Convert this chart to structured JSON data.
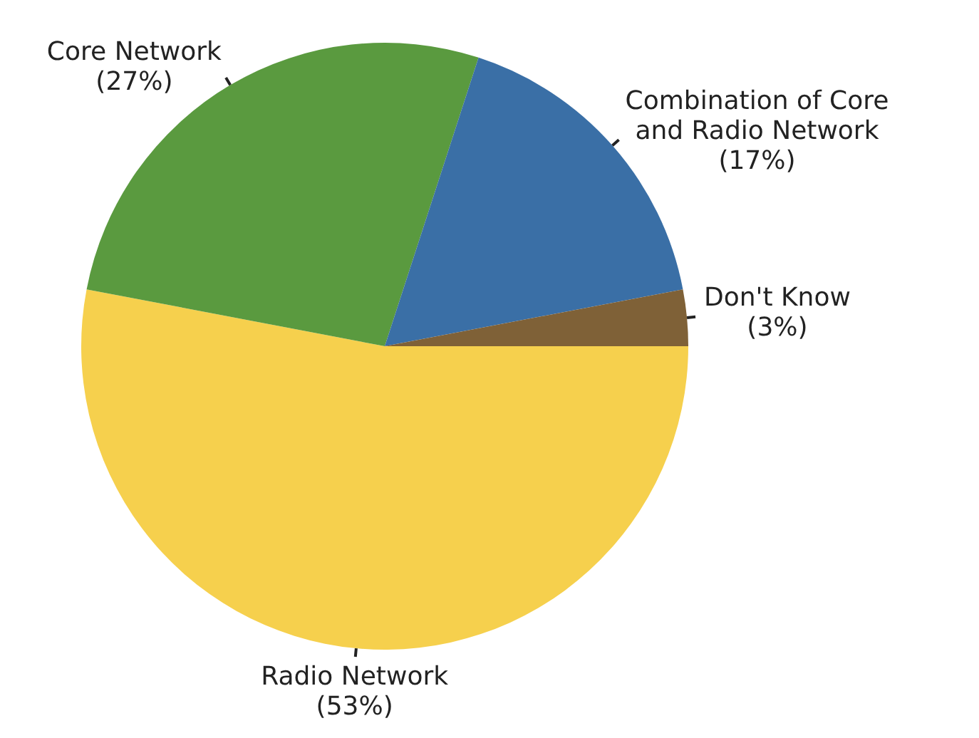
{
  "chart_data": {
    "type": "pie",
    "categories": [
      "Radio Network",
      "Core Network",
      "Combination of Core and Radio Network",
      "Don't Know"
    ],
    "values": [
      53,
      27,
      17,
      3
    ],
    "value_labels": [
      "(53%)",
      "(27%)",
      "(17%)",
      "(3%)"
    ],
    "colors": [
      "#f6d04d",
      "#5a9a3f",
      "#3a6fa6",
      "#7f6137"
    ],
    "legend": false
  }
}
